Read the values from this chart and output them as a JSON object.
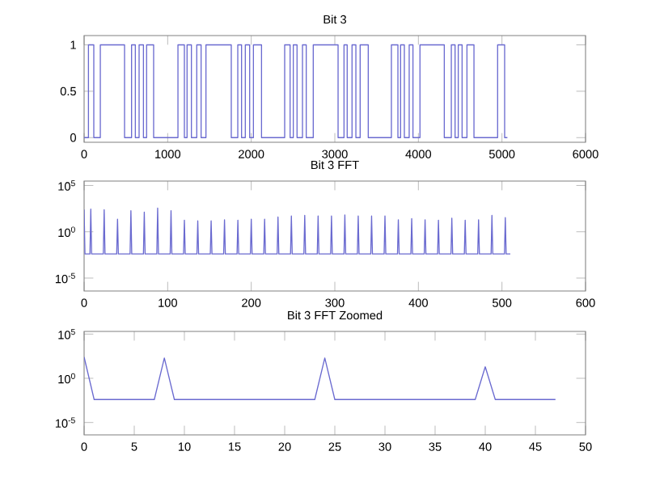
{
  "chart_data": [
    {
      "type": "step",
      "title": "Bit 3",
      "xlim": [
        0,
        6000
      ],
      "ylim": [
        -0.05,
        1.1
      ],
      "xticks": [
        0,
        1000,
        2000,
        3000,
        4000,
        5000,
        6000
      ],
      "yticks": [
        0,
        0.5,
        1
      ],
      "series": [
        {
          "color": "#6a6ad0",
          "x": [
            0,
            52,
            116,
            194,
            484,
            568,
            613,
            658,
            710,
            748,
            832,
            1123,
            1200,
            1232,
            1284,
            1348,
            1400,
            1458,
            1761,
            1839,
            1884,
            1929,
            1981,
            2026,
            2123,
            2400,
            2465,
            2503,
            2548,
            2613,
            2658,
            2742,
            3039,
            3110,
            3148,
            3206,
            3252,
            3303,
            3400,
            3677,
            3755,
            3787,
            3832,
            3890,
            3935,
            4019,
            4310,
            4394,
            4439,
            4477,
            4523,
            4581,
            4665,
            4948,
            5032,
            5065
          ],
          "values": [
            0,
            1,
            0,
            1,
            0,
            1,
            0,
            1,
            0,
            1,
            0,
            1,
            0,
            1,
            0,
            1,
            0,
            1,
            0,
            1,
            0,
            1,
            0,
            1,
            0,
            1,
            0,
            1,
            0,
            1,
            0,
            1,
            0,
            1,
            0,
            1,
            0,
            1,
            0,
            1,
            0,
            1,
            0,
            1,
            0,
            1,
            0,
            1,
            0,
            1,
            0,
            1,
            0,
            1,
            0,
            0
          ]
        }
      ]
    },
    {
      "type": "line",
      "title": "Bit 3 FFT",
      "log": "y",
      "xlim": [
        0,
        600
      ],
      "ylim": [
        4e-07,
        300000
      ],
      "xticks": [
        0,
        100,
        200,
        300,
        400,
        500,
        600
      ],
      "yticks": [
        {
          "value": 1e-05,
          "label": "10$^{-5}$"
        },
        {
          "value": 1,
          "label": "10$^{0}$"
        },
        {
          "value": 100000,
          "label": "10$^{5}$"
        }
      ],
      "series": [
        {
          "color": "#6a6ad0",
          "x": [
            0,
            1,
            7,
            8,
            9,
            23,
            24,
            25,
            39,
            40,
            41,
            55,
            56,
            57,
            71,
            72,
            73,
            87,
            88,
            89,
            103,
            104,
            105,
            119,
            120,
            121,
            135,
            136,
            137,
            151,
            152,
            153,
            167,
            168,
            169,
            183,
            184,
            185,
            199,
            200,
            201,
            215,
            216,
            217,
            231,
            232,
            233,
            247,
            248,
            249,
            263,
            264,
            265,
            279,
            280,
            281,
            295,
            296,
            297,
            311,
            312,
            313,
            327,
            328,
            329,
            343,
            344,
            345,
            359,
            360,
            361,
            375,
            376,
            377,
            391,
            392,
            393,
            407,
            408,
            409,
            423,
            424,
            425,
            439,
            440,
            441,
            455,
            456,
            457,
            471,
            472,
            473,
            487,
            488,
            489,
            503,
            504,
            505,
            510
          ],
          "values": [
            250,
            0.004,
            0.004,
            280,
            0.004,
            0.004,
            240,
            0.004,
            0.004,
            23,
            0.004,
            0.004,
            190,
            0.004,
            0.004,
            130,
            0.004,
            0.004,
            360,
            0.004,
            0.004,
            190,
            0.004,
            0.004,
            18,
            0.004,
            0.004,
            15,
            0.004,
            0.004,
            15,
            0.004,
            0.004,
            20,
            0.004,
            0.004,
            18,
            0.004,
            0.004,
            23,
            0.004,
            0.004,
            23,
            0.004,
            0.004,
            39,
            0.004,
            0.004,
            50,
            0.004,
            0.004,
            58,
            0.004,
            0.004,
            50,
            0.004,
            0.004,
            50,
            0.004,
            0.004,
            66,
            0.004,
            0.004,
            50,
            0.004,
            0.004,
            50,
            0.004,
            0.004,
            50,
            0.004,
            0.004,
            20,
            0.004,
            0.004,
            26,
            0.004,
            0.004,
            20,
            0.004,
            0.004,
            18,
            0.004,
            0.004,
            30,
            0.004,
            0.004,
            18,
            0.004,
            0.004,
            20,
            0.004,
            0.004,
            58,
            0.004,
            0.004,
            34,
            0.004,
            0.004
          ]
        }
      ]
    },
    {
      "type": "line",
      "title": "Bit 3 FFT Zoomed",
      "log": "y",
      "xlim": [
        0,
        50
      ],
      "ylim": [
        4e-07,
        200000
      ],
      "xticks": [
        0,
        5,
        10,
        15,
        20,
        25,
        30,
        35,
        40,
        45,
        50
      ],
      "yticks": [
        {
          "value": 1e-05,
          "label": "10$^{-5}$"
        },
        {
          "value": 1,
          "label": "10$^{0}$"
        },
        {
          "value": 100000,
          "label": "10$^{5}$"
        }
      ],
      "series": [
        {
          "color": "#6a6ad0",
          "x": [
            0,
            1,
            7,
            8,
            9,
            23,
            24,
            25,
            39,
            40,
            41,
            47
          ],
          "values": [
            250,
            0.004,
            0.004,
            200,
            0.004,
            0.004,
            200,
            0.004,
            0.004,
            20,
            0.004,
            0.004
          ]
        }
      ]
    }
  ]
}
